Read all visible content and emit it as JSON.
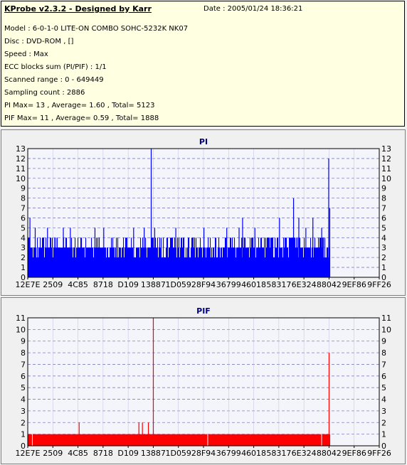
{
  "info": {
    "title": "KProbe v2.3.2 - Designed by Karr",
    "date": "Date : 2005/01/24 18:36:21",
    "lines": [
      "Model : 6-0-1-0 LITE-ON COMBO SOHC-5232K NK07",
      "Disc : DVD-ROM ,  []",
      "Speed : Max",
      "ECC blocks sum (PI/PIF) : 1/1",
      "Scanned range : 0 - 649449",
      "Sampling count : 2886",
      "PI Max= 13 , Average= 1.60 , Total= 5123",
      "PIF Max= 11 , Average= 0.59 , Total= 1888"
    ]
  },
  "chart_data": [
    {
      "type": "bar",
      "title": "PI",
      "color": "#0000ff",
      "ylim": [
        0,
        13
      ],
      "yticks": [
        0,
        1,
        2,
        3,
        4,
        5,
        6,
        7,
        8,
        9,
        10,
        11,
        12,
        13
      ],
      "xticks": [
        "12E7E",
        "2509",
        "4C85",
        "8718",
        "D109",
        "13887",
        "1D059",
        "28F94",
        "36799",
        "46018",
        "58317",
        "6E324",
        "88042",
        "9EF86",
        "9FF26"
      ],
      "grid": true,
      "sampling_count": 2886,
      "data_end_fraction": 0.862,
      "values_baseline": 3,
      "spikes": [
        {
          "pos": 0.005,
          "value": 6
        },
        {
          "pos": 0.02,
          "value": 5
        },
        {
          "pos": 0.055,
          "value": 5
        },
        {
          "pos": 0.068,
          "value": 1
        },
        {
          "pos": 0.1,
          "value": 5
        },
        {
          "pos": 0.12,
          "value": 5
        },
        {
          "pos": 0.19,
          "value": 5
        },
        {
          "pos": 0.215,
          "value": 5
        },
        {
          "pos": 0.3,
          "value": 5
        },
        {
          "pos": 0.33,
          "value": 5
        },
        {
          "pos": 0.35,
          "value": 13
        },
        {
          "pos": 0.36,
          "value": 5
        },
        {
          "pos": 0.42,
          "value": 5
        },
        {
          "pos": 0.455,
          "value": 1
        },
        {
          "pos": 0.5,
          "value": 5
        },
        {
          "pos": 0.565,
          "value": 5
        },
        {
          "pos": 0.6,
          "value": 5
        },
        {
          "pos": 0.61,
          "value": 6
        },
        {
          "pos": 0.645,
          "value": 5
        },
        {
          "pos": 0.715,
          "value": 6
        },
        {
          "pos": 0.72,
          "value": 1
        },
        {
          "pos": 0.755,
          "value": 8
        },
        {
          "pos": 0.77,
          "value": 6
        },
        {
          "pos": 0.79,
          "value": 5
        },
        {
          "pos": 0.81,
          "value": 6
        },
        {
          "pos": 0.835,
          "value": 5
        },
        {
          "pos": 0.855,
          "value": 12
        },
        {
          "pos": 0.858,
          "value": 7
        }
      ]
    },
    {
      "type": "bar",
      "title": "PIF",
      "color": "#ff0000",
      "ylim": [
        0,
        11
      ],
      "yticks": [
        0,
        1,
        2,
        3,
        4,
        5,
        6,
        7,
        8,
        9,
        10,
        11
      ],
      "xticks": [
        "12E7E",
        "2509",
        "4C85",
        "8718",
        "D109",
        "13887",
        "1D059",
        "28F94",
        "36799",
        "46018",
        "58317",
        "6E324",
        "88042",
        "9EF86",
        "9FF26"
      ],
      "grid": true,
      "sampling_count": 2886,
      "data_end_fraction": 0.862,
      "values_baseline": 1,
      "gaps": [
        0.012,
        0.511,
        0.835
      ],
      "spikes": [
        {
          "pos": 0.145,
          "value": 2
        },
        {
          "pos": 0.315,
          "value": 2
        },
        {
          "pos": 0.325,
          "value": 2
        },
        {
          "pos": 0.342,
          "value": 2
        },
        {
          "pos": 0.356,
          "value": 11
        },
        {
          "pos": 0.856,
          "value": 8
        }
      ]
    }
  ]
}
